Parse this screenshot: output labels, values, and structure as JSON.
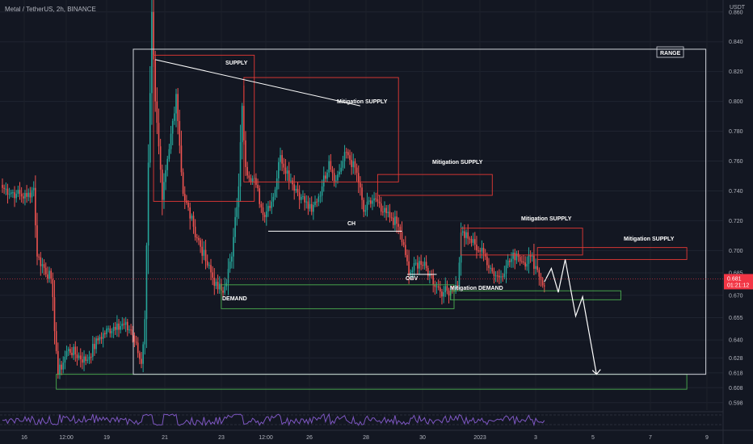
{
  "header": {
    "title": "Metal / TetherUS, 2h, BINANCE",
    "unit": "USDT"
  },
  "price_badge": {
    "price": "0.681",
    "countdown": "01:21:12",
    "color": "#f23645"
  },
  "colors": {
    "up": "#26a69a",
    "down": "#ef5350",
    "supply": "#e53935",
    "demand": "#4caf50",
    "range": "#d1d4dc",
    "rsi": "#7e57c2"
  },
  "annotations": {
    "range": "RANGE",
    "supply": "SUPPLY",
    "mitigation_supply": "Mitigation SUPPLY",
    "demand": "DEMAND",
    "mitigation_demand": "Mitigation DEMAND",
    "ch": "CH",
    "obv": "OBV"
  },
  "chart_data": {
    "type": "candlestick",
    "title": "Metal / TetherUS, 2h, BINANCE",
    "y_unit": "USDT",
    "ylim": [
      0.593,
      0.868
    ],
    "y_ticks": [
      0.598,
      0.608,
      0.618,
      0.628,
      0.64,
      0.655,
      0.67,
      0.685,
      0.7,
      0.72,
      0.74,
      0.76,
      0.78,
      0.8,
      0.82,
      0.84,
      0.86
    ],
    "x_ticks": [
      "16",
      "12:00",
      "19",
      "21",
      "23",
      "12:00",
      "26",
      "28",
      "30",
      "2023",
      "3",
      "5",
      "7",
      "9"
    ],
    "last_price": 0.681,
    "anchors": [
      [
        0,
        0.742
      ],
      [
        8,
        0.738
      ],
      [
        14,
        0.736
      ],
      [
        18,
        0.742
      ],
      [
        20,
        0.696
      ],
      [
        28,
        0.681
      ],
      [
        32,
        0.617
      ],
      [
        38,
        0.634
      ],
      [
        48,
        0.626
      ],
      [
        56,
        0.642
      ],
      [
        66,
        0.651
      ],
      [
        74,
        0.647
      ],
      [
        80,
        0.624
      ],
      [
        82,
        0.654
      ],
      [
        86,
        0.86
      ],
      [
        88,
        0.8
      ],
      [
        92,
        0.734
      ],
      [
        96,
        0.768
      ],
      [
        100,
        0.805
      ],
      [
        104,
        0.738
      ],
      [
        110,
        0.716
      ],
      [
        118,
        0.69
      ],
      [
        124,
        0.674
      ],
      [
        128,
        0.676
      ],
      [
        132,
        0.696
      ],
      [
        136,
        0.743
      ],
      [
        138,
        0.797
      ],
      [
        140,
        0.756
      ],
      [
        146,
        0.744
      ],
      [
        150,
        0.724
      ],
      [
        156,
        0.736
      ],
      [
        160,
        0.764
      ],
      [
        166,
        0.747
      ],
      [
        172,
        0.736
      ],
      [
        178,
        0.726
      ],
      [
        184,
        0.743
      ],
      [
        188,
        0.76
      ],
      [
        192,
        0.747
      ],
      [
        198,
        0.766
      ],
      [
        204,
        0.752
      ],
      [
        208,
        0.726
      ],
      [
        214,
        0.735
      ],
      [
        218,
        0.726
      ],
      [
        224,
        0.722
      ],
      [
        228,
        0.716
      ],
      [
        232,
        0.697
      ],
      [
        234,
        0.684
      ],
      [
        240,
        0.693
      ],
      [
        246,
        0.684
      ],
      [
        250,
        0.676
      ],
      [
        254,
        0.672
      ],
      [
        258,
        0.674
      ],
      [
        262,
        0.676
      ],
      [
        264,
        0.712
      ],
      [
        268,
        0.708
      ],
      [
        272,
        0.704
      ],
      [
        278,
        0.696
      ],
      [
        282,
        0.686
      ],
      [
        286,
        0.682
      ],
      [
        290,
        0.69
      ],
      [
        296,
        0.698
      ],
      [
        300,
        0.692
      ],
      [
        304,
        0.696
      ],
      [
        308,
        0.687
      ],
      [
        312,
        0.676
      ]
    ],
    "forecast_path": [
      [
        312,
        0.679
      ],
      [
        316,
        0.688
      ],
      [
        320,
        0.672
      ],
      [
        324,
        0.694
      ],
      [
        330,
        0.656
      ],
      [
        334,
        0.669
      ],
      [
        342,
        0.617
      ]
    ],
    "zones": [
      {
        "label": "SUPPLY",
        "kind": "supply",
        "t0": 87,
        "t1": 145,
        "y0": 0.733,
        "y1": 0.831
      },
      {
        "label": "Mitigation SUPPLY",
        "kind": "supply",
        "t0": 139,
        "t1": 228,
        "y0": 0.746,
        "y1": 0.816
      },
      {
        "label": "Mitigation SUPPLY",
        "kind": "supply",
        "t0": 216,
        "t1": 282,
        "y0": 0.737,
        "y1": 0.751
      },
      {
        "label": "Mitigation SUPPLY",
        "kind": "supply",
        "t0": 264,
        "t1": 334,
        "y0": 0.697,
        "y1": 0.715
      },
      {
        "label": "Mitigation SUPPLY",
        "kind": "supply",
        "t0": 308,
        "t1": 394,
        "y0": 0.694,
        "y1": 0.702
      },
      {
        "label": "DEMAND",
        "kind": "demand",
        "t0": 126,
        "t1": 260,
        "y0": 0.661,
        "y1": 0.677
      },
      {
        "label": "Mitigation DEMAND",
        "kind": "demand",
        "t0": 258,
        "t1": 356,
        "y0": 0.667,
        "y1": 0.673
      },
      {
        "label": "",
        "kind": "demand",
        "t0": 31,
        "t1": 394,
        "y0": 0.607,
        "y1": 0.617
      }
    ],
    "range_box": {
      "label": "RANGE",
      "t0": 80,
      "t1": 404,
      "y0": 0.617,
      "y1": 0.835
    },
    "lines": [
      {
        "points": [
          [
            88,
            0.828
          ],
          [
            206,
            0.797
          ]
        ]
      },
      {
        "label": "CH",
        "points": [
          [
            153,
            0.713
          ],
          [
            230,
            0.713
          ]
        ]
      },
      {
        "label": "OBV",
        "points": [
          [
            233,
            0.684
          ],
          [
            250,
            0.684
          ]
        ]
      }
    ]
  }
}
